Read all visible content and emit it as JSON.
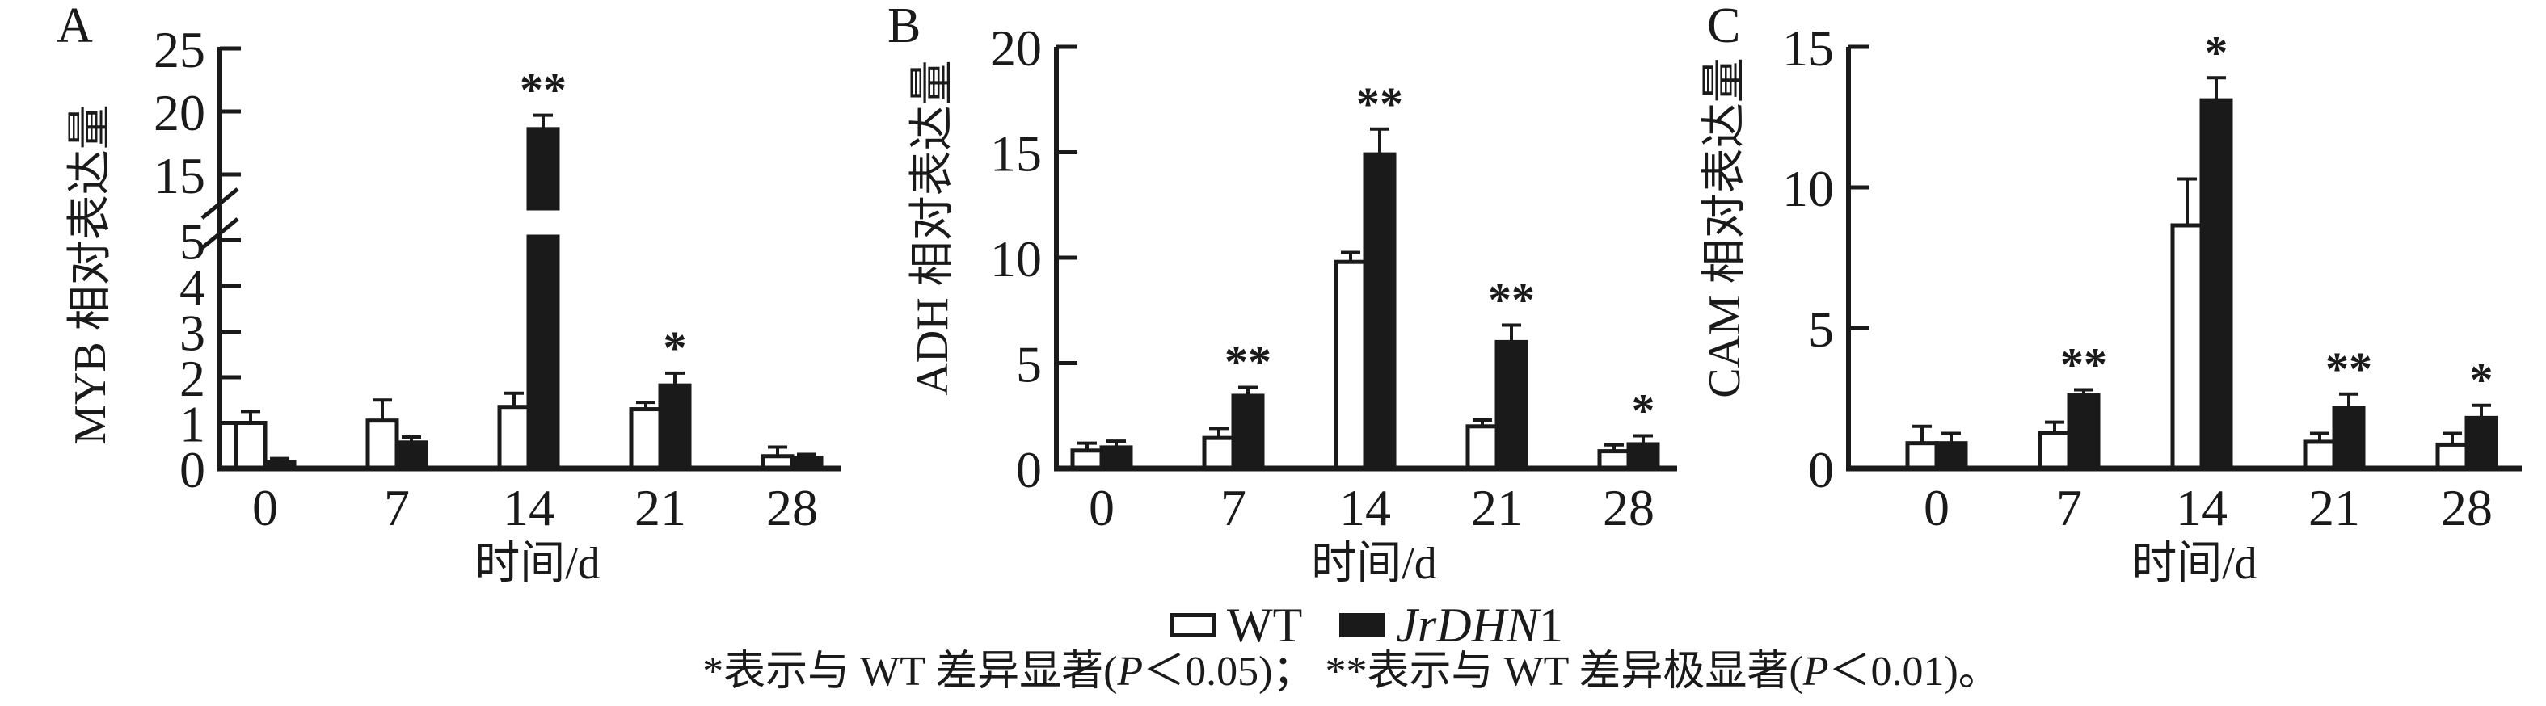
{
  "chart_data": [
    {
      "type": "bar",
      "panel_label": "A",
      "ylabel": "MYB 相对表达量",
      "xlabel": "时间/d",
      "categories": [
        "0",
        "7",
        "14",
        "21",
        "28"
      ],
      "series": [
        {
          "name": "WT",
          "values": [
            1.0,
            1.05,
            1.35,
            1.3,
            0.27
          ],
          "errors": [
            0.25,
            0.45,
            0.3,
            0.15,
            0.2
          ]
        },
        {
          "name": "JrDHN1",
          "values": [
            0.14,
            0.57,
            18.6,
            1.82,
            0.23
          ],
          "errors": [
            0.08,
            0.12,
            1.1,
            0.27,
            0.08
          ]
        }
      ],
      "significance": [
        "",
        "",
        "**",
        "*",
        ""
      ],
      "axis": {
        "type": "broken",
        "lower_ticks": [
          0,
          1,
          2,
          3,
          4,
          5
        ],
        "upper_ticks": [
          15,
          20,
          25
        ],
        "break_between": [
          5,
          15
        ],
        "ylim": [
          0,
          25
        ]
      },
      "grid": false
    },
    {
      "type": "bar",
      "panel_label": "B",
      "ylabel": "ADH 相对表达量",
      "xlabel": "时间/d",
      "categories": [
        "0",
        "7",
        "14",
        "21",
        "28"
      ],
      "series": [
        {
          "name": "WT",
          "values": [
            0.85,
            1.45,
            9.8,
            2.0,
            0.82
          ],
          "errors": [
            0.35,
            0.45,
            0.45,
            0.3,
            0.3
          ]
        },
        {
          "name": "JrDHN1",
          "values": [
            1.0,
            3.45,
            14.9,
            6.0,
            1.15
          ],
          "errors": [
            0.3,
            0.4,
            1.2,
            0.8,
            0.4
          ]
        }
      ],
      "significance": [
        "",
        "**",
        "**",
        "**",
        "*"
      ],
      "axis": {
        "type": "linear",
        "ticks": [
          0,
          5,
          10,
          15,
          20
        ],
        "ylim": [
          0,
          20
        ]
      },
      "grid": false
    },
    {
      "type": "bar",
      "panel_label": "C",
      "ylabel": "CAM 相对表达量",
      "xlabel": "时间/d",
      "categories": [
        "0",
        "7",
        "14",
        "21",
        "28"
      ],
      "series": [
        {
          "name": "WT",
          "values": [
            0.9,
            1.25,
            8.65,
            0.95,
            0.85
          ],
          "errors": [
            0.6,
            0.4,
            1.65,
            0.3,
            0.4
          ]
        },
        {
          "name": "JrDHN1",
          "values": [
            0.9,
            2.6,
            13.1,
            2.15,
            1.8
          ],
          "errors": [
            0.35,
            0.2,
            0.8,
            0.5,
            0.45
          ]
        }
      ],
      "significance": [
        "",
        "**",
        "*",
        "**",
        "*"
      ],
      "axis": {
        "type": "linear",
        "ticks": [
          0,
          5,
          10,
          15
        ],
        "ylim": [
          0,
          15
        ]
      },
      "grid": false
    }
  ],
  "legend": {
    "position": "bottom-center",
    "items": [
      {
        "parts": [
          {
            "text": "WT",
            "italic": false
          }
        ],
        "fill": "#ffffff"
      },
      {
        "parts": [
          {
            "text": "JrDHN",
            "italic": true
          },
          {
            "text": "1",
            "italic": false
          }
        ],
        "fill": "#1a1a1a"
      }
    ]
  },
  "footnote_parts": [
    {
      "text": "*表示与 WT 差异显著(",
      "italic": false
    },
    {
      "text": "P",
      "italic": true
    },
    {
      "text": "＜0.05)； **表示与 WT 差异极显著(",
      "italic": false
    },
    {
      "text": "P",
      "italic": true
    },
    {
      "text": "＜0.01)。",
      "italic": false
    }
  ],
  "colors": {
    "ink": "#1a1a1a",
    "bar_wt_fill": "#ffffff",
    "bar_jrdhn1_fill": "#1a1a1a",
    "background": "#ffffff"
  }
}
